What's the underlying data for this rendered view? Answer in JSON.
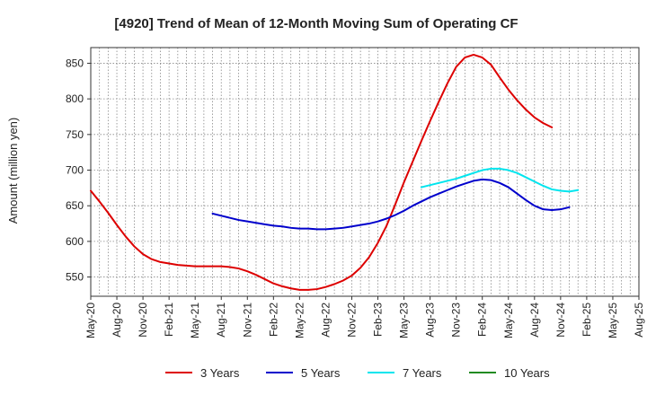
{
  "chart_data": {
    "type": "line",
    "title": "[4920]  Trend of Mean of 12-Month Moving Sum of Operating CF",
    "xlabel": "",
    "ylabel": "Amount (million yen)",
    "ylim": [
      523,
      872
    ],
    "yticks": [
      550,
      600,
      650,
      700,
      750,
      800,
      850
    ],
    "x_start_month": "2020-05",
    "x_month_count": 64,
    "xtick_labels": [
      "May-20",
      "Aug-20",
      "Nov-20",
      "Feb-21",
      "May-21",
      "Aug-21",
      "Nov-21",
      "Feb-22",
      "May-22",
      "Aug-22",
      "Nov-22",
      "Feb-23",
      "May-23",
      "Aug-23",
      "Nov-23",
      "Feb-24",
      "May-24",
      "Aug-24",
      "Nov-24",
      "Feb-25",
      "May-25",
      "Aug-25"
    ],
    "grid": true,
    "legend_position": "bottom",
    "series": [
      {
        "name": "3 Years",
        "color": "#dd0000",
        "start_index": 0,
        "values": [
          671,
          656,
          640,
          623,
          607,
          593,
          582,
          575,
          571,
          569,
          567,
          566,
          565,
          565,
          565,
          565,
          564,
          562,
          558,
          553,
          547,
          541,
          537,
          534,
          532,
          532,
          533,
          536,
          540,
          545,
          552,
          563,
          578,
          598,
          622,
          652,
          683,
          712,
          741,
          769,
          796,
          822,
          845,
          858,
          862,
          858,
          848,
          830,
          813,
          798,
          785,
          774,
          766,
          760
        ]
      },
      {
        "name": "5 Years",
        "color": "#0000cc",
        "start_index": 14,
        "values": [
          639,
          636,
          633,
          630,
          628,
          626,
          624,
          622,
          621,
          619,
          618,
          618,
          617,
          617,
          618,
          619,
          621,
          623,
          625,
          628,
          632,
          637,
          643,
          650,
          656,
          662,
          667,
          672,
          677,
          681,
          685,
          687,
          686,
          682,
          676,
          667,
          658,
          650,
          645,
          644,
          645,
          648
        ]
      },
      {
        "name": "7 Years",
        "color": "#00e5ee",
        "start_index": 38,
        "values": [
          676,
          679,
          682,
          685,
          688,
          692,
          696,
          700,
          702,
          702,
          700,
          696,
          690,
          684,
          678,
          673,
          671,
          670,
          672
        ]
      },
      {
        "name": "10 Years",
        "color": "#228b22",
        "start_index": 0,
        "values": []
      }
    ]
  }
}
